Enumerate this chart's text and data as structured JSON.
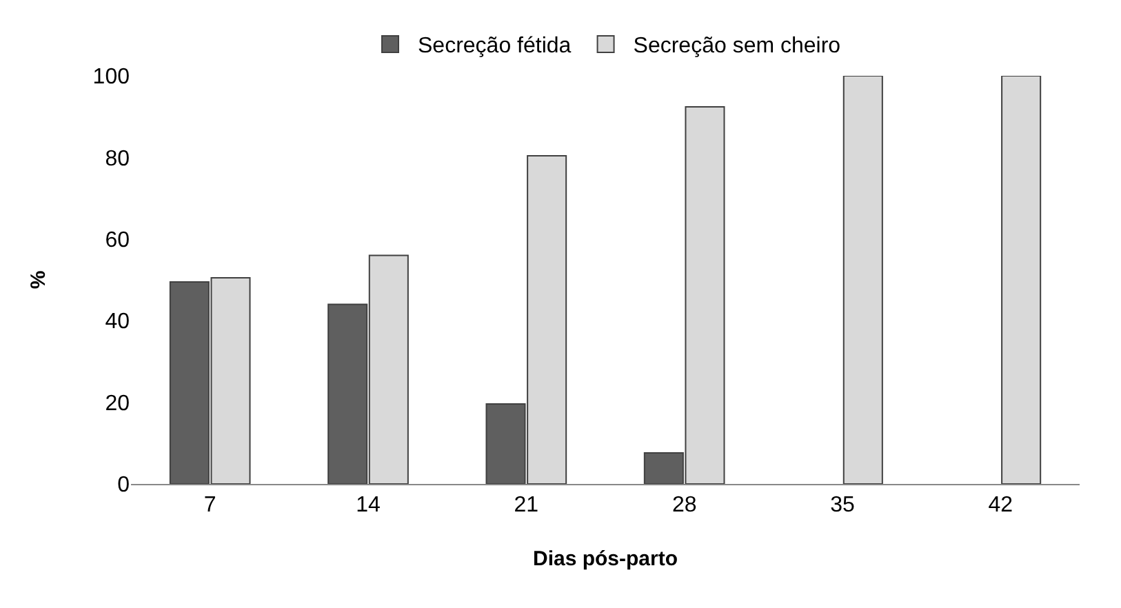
{
  "chart_data": {
    "type": "bar",
    "xlabel": "Dias pós-parto",
    "ylabel": "%",
    "categories": [
      "7",
      "14",
      "21",
      "28",
      "35",
      "42"
    ],
    "series": [
      {
        "name": "Secreção fétida",
        "color": "#5f5f5f",
        "values": [
          49.5,
          44,
          19.6,
          7.6,
          0,
          0
        ]
      },
      {
        "name": "Secreção sem cheiro",
        "color": "#d9d9d9",
        "values": [
          50.5,
          56,
          80.4,
          92.4,
          100,
          100
        ]
      }
    ],
    "ylim": [
      0,
      100
    ],
    "yticks": [
      0,
      20,
      40,
      60,
      80,
      100
    ],
    "grid": false,
    "legend": "top"
  }
}
